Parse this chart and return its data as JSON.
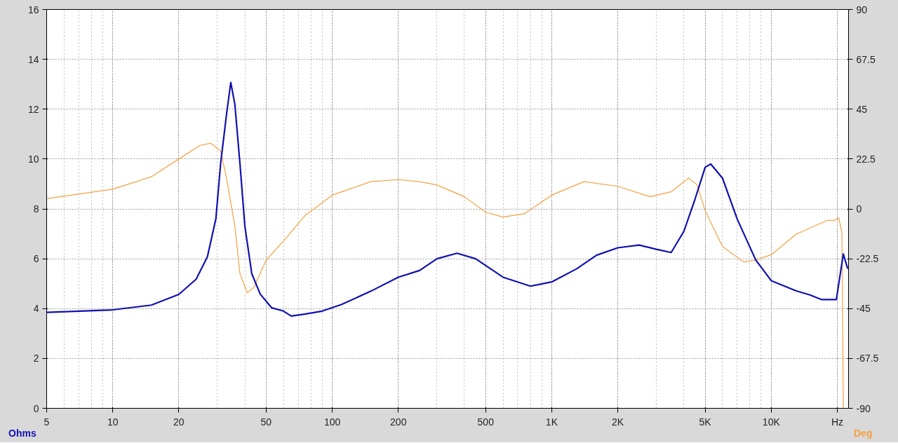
{
  "chart_data": {
    "type": "line",
    "ylabel": "Ohms",
    "y2label": "Deg",
    "log": "x",
    "grid": true,
    "marker": "none",
    "line_style": "solid",
    "xlim": [
      5,
      22500
    ],
    "ylim": [
      0,
      16
    ],
    "y2lim": [
      -90,
      90
    ],
    "xticks": [
      5,
      10,
      20,
      50,
      100,
      200,
      500,
      {
        "value": 1000,
        "label": "1K"
      },
      {
        "value": 2000,
        "label": "2K"
      },
      {
        "value": 5000,
        "label": "5K"
      },
      {
        "value": 10000,
        "label": "10K"
      },
      {
        "value": 20000,
        "label": "Hz"
      }
    ],
    "yticks": [
      0,
      2,
      4,
      6,
      8,
      10,
      12,
      14,
      16
    ],
    "y2ticks": [
      -90,
      -67.5,
      -45,
      -22.5,
      0,
      22.5,
      45,
      67.5,
      90
    ],
    "series": [
      {
        "color": "#f5a040",
        "axis": "y2",
        "x": [
          5,
          10,
          15,
          20,
          25,
          28,
          31,
          33,
          36,
          38,
          41,
          44,
          50,
          60,
          75,
          100,
          150,
          200,
          250,
          300,
          400,
          500,
          600,
          750,
          1000,
          1400,
          2000,
          2800,
          3500,
          4200,
          4600,
          5000,
          6000,
          7500,
          8500,
          10000,
          13000,
          18000,
          19500,
          20300,
          21000,
          21300
        ],
        "values": [
          4.6,
          8.9,
          14.5,
          22.5,
          28.7,
          29.6,
          26.2,
          13.9,
          -7.7,
          -29.3,
          -37.9,
          -35.4,
          -23.1,
          -14.5,
          -3.1,
          6.2,
          12.3,
          13.2,
          12.3,
          10.8,
          5.5,
          -1.5,
          -3.7,
          -2.2,
          6.2,
          12.3,
          10.2,
          5.5,
          7.7,
          13.9,
          10.8,
          -0.9,
          -17,
          -24,
          -23.1,
          -20.7,
          -11.4,
          -5.2,
          -5.2,
          -4,
          -10.8,
          -90
        ]
      },
      {
        "color": "#1010b0",
        "x": [
          5,
          10,
          15,
          20,
          24,
          27,
          29.5,
          31,
          33,
          34.5,
          36,
          38,
          40,
          43,
          47,
          53,
          60,
          65,
          75,
          90,
          110,
          150,
          200,
          250,
          300,
          370,
          450,
          600,
          800,
          1000,
          1300,
          1600,
          2000,
          2500,
          3000,
          3500,
          4000,
          4500,
          5000,
          5300,
          6000,
          7000,
          8500,
          10000,
          13000,
          15000,
          17000,
          19800,
          21300,
          22300
        ],
        "values": [
          3.85,
          3.95,
          4.14,
          4.57,
          5.18,
          6.08,
          7.6,
          9.8,
          11.8,
          13.07,
          12.2,
          9.8,
          7.3,
          5.4,
          4.58,
          4.03,
          3.9,
          3.7,
          3.78,
          3.9,
          4.16,
          4.7,
          5.26,
          5.53,
          6.0,
          6.22,
          6.0,
          5.26,
          4.9,
          5.07,
          5.6,
          6.14,
          6.44,
          6.55,
          6.38,
          6.25,
          7.1,
          8.4,
          9.67,
          9.8,
          9.23,
          7.59,
          5.95,
          5.12,
          4.71,
          4.55,
          4.36,
          4.36,
          6.19,
          5.6
        ]
      }
    ]
  }
}
